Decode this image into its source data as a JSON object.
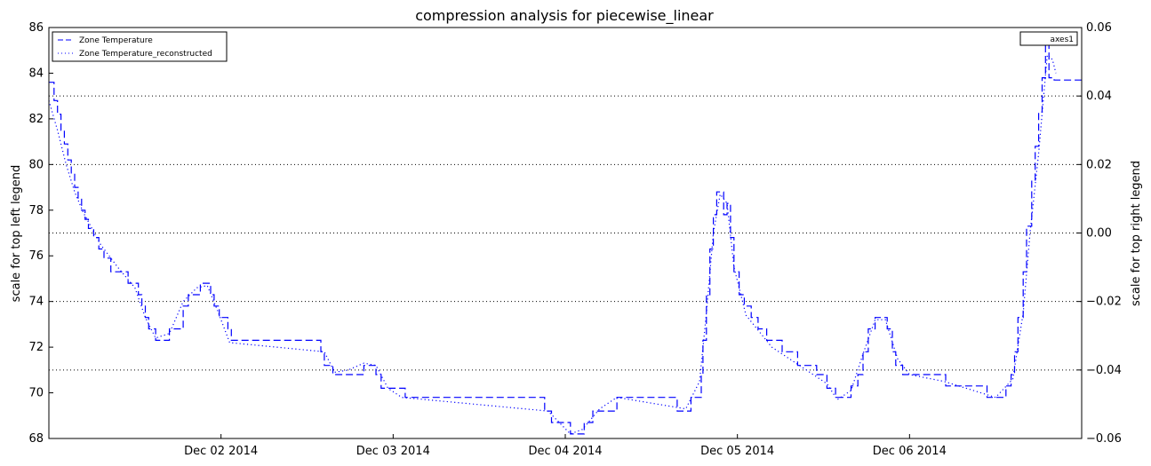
{
  "chart_data": {
    "type": "line",
    "title": "compression analysis for piecewise_linear",
    "ylabel": "scale for top left legend",
    "y2label": "scale for top right legend",
    "xlabel": "",
    "xlim": [
      0,
      6
    ],
    "ylim": [
      68,
      86
    ],
    "y2lim": [
      -0.06,
      0.06
    ],
    "x_unit": "days since Dec 01 2014 00:00",
    "xticks": [
      {
        "x": 1,
        "label": "Dec 02 2014"
      },
      {
        "x": 2,
        "label": "Dec 03 2014"
      },
      {
        "x": 3,
        "label": "Dec 04 2014"
      },
      {
        "x": 4,
        "label": "Dec 05 2014"
      },
      {
        "x": 5,
        "label": "Dec 06 2014"
      }
    ],
    "yticks": [
      68,
      70,
      72,
      74,
      76,
      78,
      80,
      82,
      84,
      86
    ],
    "y2ticks": [
      {
        "value": -0.06,
        "label": "−0.06"
      },
      {
        "value": -0.04,
        "label": "−0.04"
      },
      {
        "value": -0.02,
        "label": "−0.02"
      },
      {
        "value": 0.0,
        "label": "0.00"
      },
      {
        "value": 0.02,
        "label": "0.02"
      },
      {
        "value": 0.04,
        "label": "0.04"
      },
      {
        "value": 0.06,
        "label": "0.06"
      }
    ],
    "y2_grid": [
      -0.04,
      -0.02,
      0.0,
      0.02,
      0.04
    ],
    "legend_left": {
      "placement": "top-left",
      "entries": [
        "Zone Temperature",
        "Zone Temperature_reconstructed"
      ]
    },
    "legend_right": {
      "placement": "top-right",
      "entries": [
        "axes1"
      ]
    },
    "series": [
      {
        "name": "Zone Temperature",
        "style": "dashed",
        "color": "#0000ff",
        "points": [
          [
            0.0,
            83.6
          ],
          [
            0.03,
            83.6
          ],
          [
            0.03,
            82.8
          ],
          [
            0.05,
            82.8
          ],
          [
            0.05,
            82.2
          ],
          [
            0.07,
            82.2
          ],
          [
            0.07,
            81.5
          ],
          [
            0.09,
            81.5
          ],
          [
            0.09,
            80.9
          ],
          [
            0.11,
            80.9
          ],
          [
            0.11,
            80.2
          ],
          [
            0.13,
            80.2
          ],
          [
            0.13,
            79.6
          ],
          [
            0.15,
            79.6
          ],
          [
            0.15,
            79.0
          ],
          [
            0.17,
            79.0
          ],
          [
            0.17,
            78.5
          ],
          [
            0.19,
            78.5
          ],
          [
            0.19,
            78.0
          ],
          [
            0.21,
            78.0
          ],
          [
            0.21,
            77.6
          ],
          [
            0.23,
            77.6
          ],
          [
            0.23,
            77.2
          ],
          [
            0.26,
            77.2
          ],
          [
            0.26,
            76.8
          ],
          [
            0.29,
            76.8
          ],
          [
            0.29,
            76.3
          ],
          [
            0.32,
            76.3
          ],
          [
            0.32,
            75.9
          ],
          [
            0.36,
            75.9
          ],
          [
            0.36,
            75.3
          ],
          [
            0.46,
            75.3
          ],
          [
            0.46,
            74.8
          ],
          [
            0.52,
            74.8
          ],
          [
            0.52,
            74.3
          ],
          [
            0.54,
            74.3
          ],
          [
            0.54,
            73.8
          ],
          [
            0.56,
            73.8
          ],
          [
            0.56,
            73.3
          ],
          [
            0.58,
            73.3
          ],
          [
            0.58,
            72.8
          ],
          [
            0.62,
            72.8
          ],
          [
            0.62,
            72.3
          ],
          [
            0.7,
            72.3
          ],
          [
            0.7,
            72.8
          ],
          [
            0.78,
            72.8
          ],
          [
            0.78,
            73.8
          ],
          [
            0.81,
            73.8
          ],
          [
            0.81,
            74.3
          ],
          [
            0.88,
            74.3
          ],
          [
            0.88,
            74.8
          ],
          [
            0.94,
            74.8
          ],
          [
            0.94,
            74.3
          ],
          [
            0.96,
            74.3
          ],
          [
            0.96,
            73.8
          ],
          [
            0.99,
            73.8
          ],
          [
            0.99,
            73.3
          ],
          [
            1.04,
            73.3
          ],
          [
            1.04,
            72.8
          ],
          [
            1.06,
            72.8
          ],
          [
            1.06,
            72.3
          ],
          [
            1.58,
            72.3
          ],
          [
            1.58,
            71.8
          ],
          [
            1.6,
            71.8
          ],
          [
            1.6,
            71.2
          ],
          [
            1.65,
            71.2
          ],
          [
            1.65,
            70.8
          ],
          [
            1.83,
            70.8
          ],
          [
            1.83,
            71.2
          ],
          [
            1.9,
            71.2
          ],
          [
            1.9,
            70.8
          ],
          [
            1.93,
            70.8
          ],
          [
            1.93,
            70.2
          ],
          [
            2.07,
            70.2
          ],
          [
            2.07,
            69.8
          ],
          [
            2.88,
            69.8
          ],
          [
            2.88,
            69.2
          ],
          [
            2.92,
            69.2
          ],
          [
            2.92,
            68.7
          ],
          [
            3.03,
            68.7
          ],
          [
            3.03,
            68.2
          ],
          [
            3.11,
            68.2
          ],
          [
            3.11,
            68.7
          ],
          [
            3.16,
            68.7
          ],
          [
            3.16,
            69.2
          ],
          [
            3.3,
            69.2
          ],
          [
            3.3,
            69.8
          ],
          [
            3.65,
            69.8
          ],
          [
            3.65,
            69.2
          ],
          [
            3.73,
            69.2
          ],
          [
            3.73,
            69.8
          ],
          [
            3.79,
            69.8
          ],
          [
            3.79,
            70.8
          ],
          [
            3.8,
            70.8
          ],
          [
            3.8,
            72.3
          ],
          [
            3.82,
            72.3
          ],
          [
            3.82,
            74.3
          ],
          [
            3.84,
            74.3
          ],
          [
            3.84,
            76.3
          ],
          [
            3.86,
            76.3
          ],
          [
            3.86,
            77.8
          ],
          [
            3.88,
            77.8
          ],
          [
            3.88,
            78.8
          ],
          [
            3.92,
            78.8
          ],
          [
            3.92,
            77.8
          ],
          [
            3.94,
            77.8
          ],
          [
            3.94,
            78.3
          ],
          [
            3.96,
            78.3
          ],
          [
            3.96,
            76.8
          ],
          [
            3.98,
            76.8
          ],
          [
            3.98,
            75.3
          ],
          [
            4.01,
            75.3
          ],
          [
            4.01,
            74.3
          ],
          [
            4.04,
            74.3
          ],
          [
            4.04,
            73.8
          ],
          [
            4.08,
            73.8
          ],
          [
            4.08,
            73.3
          ],
          [
            4.12,
            73.3
          ],
          [
            4.12,
            72.8
          ],
          [
            4.17,
            72.8
          ],
          [
            4.17,
            72.3
          ],
          [
            4.26,
            72.3
          ],
          [
            4.26,
            71.8
          ],
          [
            4.35,
            71.8
          ],
          [
            4.35,
            71.2
          ],
          [
            4.46,
            71.2
          ],
          [
            4.46,
            70.8
          ],
          [
            4.52,
            70.8
          ],
          [
            4.52,
            70.2
          ],
          [
            4.57,
            70.2
          ],
          [
            4.57,
            69.8
          ],
          [
            4.66,
            69.8
          ],
          [
            4.66,
            70.3
          ],
          [
            4.7,
            70.3
          ],
          [
            4.7,
            70.8
          ],
          [
            4.73,
            70.8
          ],
          [
            4.73,
            71.8
          ],
          [
            4.76,
            71.8
          ],
          [
            4.76,
            72.8
          ],
          [
            4.8,
            72.8
          ],
          [
            4.8,
            73.3
          ],
          [
            4.87,
            73.3
          ],
          [
            4.87,
            72.8
          ],
          [
            4.9,
            72.8
          ],
          [
            4.9,
            71.8
          ],
          [
            4.92,
            71.8
          ],
          [
            4.92,
            71.2
          ],
          [
            4.96,
            71.2
          ],
          [
            4.96,
            70.8
          ],
          [
            5.21,
            70.8
          ],
          [
            5.21,
            70.3
          ],
          [
            5.45,
            70.3
          ],
          [
            5.45,
            69.8
          ],
          [
            5.56,
            69.8
          ],
          [
            5.56,
            70.3
          ],
          [
            5.59,
            70.3
          ],
          [
            5.59,
            70.8
          ],
          [
            5.61,
            70.8
          ],
          [
            5.61,
            71.8
          ],
          [
            5.63,
            71.8
          ],
          [
            5.63,
            73.3
          ],
          [
            5.66,
            73.3
          ],
          [
            5.66,
            75.3
          ],
          [
            5.68,
            75.3
          ],
          [
            5.68,
            77.3
          ],
          [
            5.71,
            77.3
          ],
          [
            5.71,
            79.3
          ],
          [
            5.73,
            79.3
          ],
          [
            5.73,
            80.8
          ],
          [
            5.75,
            80.8
          ],
          [
            5.75,
            82.3
          ],
          [
            5.77,
            82.3
          ],
          [
            5.77,
            83.8
          ],
          [
            5.79,
            83.8
          ],
          [
            5.79,
            85.3
          ],
          [
            5.81,
            85.3
          ],
          [
            5.81,
            83.8
          ],
          [
            5.84,
            83.8
          ],
          [
            5.84,
            83.7
          ],
          [
            6.0,
            83.7
          ]
        ]
      },
      {
        "name": "Zone Temperature_reconstructed",
        "style": "dotted",
        "color": "#0000ff",
        "points": [
          [
            0.0,
            82.8
          ],
          [
            0.05,
            81.5
          ],
          [
            0.1,
            80.0
          ],
          [
            0.15,
            78.8
          ],
          [
            0.2,
            77.9
          ],
          [
            0.3,
            76.5
          ],
          [
            0.4,
            75.5
          ],
          [
            0.5,
            74.6
          ],
          [
            0.56,
            73.3
          ],
          [
            0.62,
            72.4
          ],
          [
            0.7,
            72.6
          ],
          [
            0.78,
            74.0
          ],
          [
            0.86,
            74.6
          ],
          [
            0.92,
            74.7
          ],
          [
            0.98,
            73.6
          ],
          [
            1.05,
            72.2
          ],
          [
            1.6,
            71.8
          ],
          [
            1.66,
            70.9
          ],
          [
            1.74,
            71.0
          ],
          [
            1.83,
            71.3
          ],
          [
            1.9,
            71.2
          ],
          [
            1.97,
            70.2
          ],
          [
            2.05,
            69.8
          ],
          [
            2.9,
            69.2
          ],
          [
            3.03,
            68.2
          ],
          [
            3.1,
            68.4
          ],
          [
            3.2,
            69.3
          ],
          [
            3.3,
            69.8
          ],
          [
            3.7,
            69.3
          ],
          [
            3.78,
            70.5
          ],
          [
            3.82,
            73.5
          ],
          [
            3.86,
            77.0
          ],
          [
            3.9,
            78.7
          ],
          [
            3.94,
            78.3
          ],
          [
            3.98,
            75.5
          ],
          [
            4.05,
            73.4
          ],
          [
            4.2,
            72.0
          ],
          [
            4.4,
            71.0
          ],
          [
            4.52,
            70.4
          ],
          [
            4.58,
            69.7
          ],
          [
            4.66,
            70.1
          ],
          [
            4.73,
            71.7
          ],
          [
            4.8,
            73.2
          ],
          [
            4.86,
            73.2
          ],
          [
            4.93,
            71.5
          ],
          [
            5.0,
            70.8
          ],
          [
            5.2,
            70.5
          ],
          [
            5.5,
            69.8
          ],
          [
            5.6,
            70.6
          ],
          [
            5.66,
            73.5
          ],
          [
            5.7,
            77.0
          ],
          [
            5.75,
            80.5
          ],
          [
            5.8,
            84.8
          ],
          [
            5.83,
            84.6
          ],
          [
            5.85,
            84.0
          ]
        ]
      }
    ]
  }
}
